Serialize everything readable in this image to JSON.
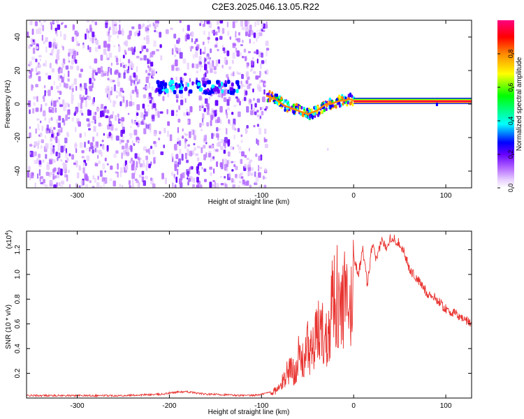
{
  "title": "C2E3.2025.046.13.05.R22",
  "colors": {
    "snr_line": "#e8332f",
    "colormap": [
      "#ffffff",
      "#e6ccff",
      "#b266ff",
      "#6600ff",
      "#0000ff",
      "#00ffff",
      "#00ff00",
      "#ffff00",
      "#ff8800",
      "#ff0000",
      "#ff0080"
    ]
  },
  "chart_data": [
    {
      "type": "heatmap",
      "title": "C2E3.2025.046.13.05.R22",
      "xlabel": "Height of straight line (km)",
      "ylabel": "Frequency (Hz)",
      "xlim": [
        -355,
        128
      ],
      "ylim": [
        -50,
        50
      ],
      "x_ticks": [
        -300,
        -200,
        -100,
        0,
        100
      ],
      "x_tick_labels": [
        "-300",
        "-200",
        "-100",
        "0",
        "100"
      ],
      "y_ticks": [
        -40,
        -20,
        0,
        20,
        40
      ],
      "y_tick_labels": [
        "-40",
        "-20",
        "0",
        "20",
        "40"
      ],
      "noise_region_x": [
        -355,
        -95
      ],
      "noise_gap_x": [
        -215,
        -200
      ],
      "weak_band": {
        "x": [
          -215,
          -125
        ],
        "freq": 10
      },
      "signal_trace": {
        "x": [
          -95,
          -90,
          -85,
          -80,
          -75,
          -70,
          -65,
          -60,
          -55,
          -50,
          -45,
          -40,
          -35,
          -30,
          -25,
          -20,
          -15,
          -10,
          -5,
          0,
          20,
          40,
          60,
          80,
          100,
          128
        ],
        "freq": [
          5,
          4,
          3,
          1,
          -1,
          -2,
          -3,
          -4,
          -5,
          -6,
          -5,
          -4,
          -2,
          0,
          0,
          1,
          2,
          2,
          3,
          2,
          2,
          2,
          2,
          2,
          2,
          2
        ]
      },
      "colorbar": {
        "label": "Normalized spectral amplitude",
        "range": [
          0,
          1
        ],
        "ticks": [
          0.0,
          0.2,
          0.4,
          0.6,
          0.8
        ],
        "tick_labels": [
          "0.0",
          "0.2",
          "0.4",
          "0.6",
          "0.8"
        ]
      }
    },
    {
      "type": "line",
      "xlabel": "Height of straight line (km)",
      "ylabel": "SNR (10 * v/v)",
      "y_multiplier": "(x10",
      "y_multiplier_exp": "4",
      "y_multiplier_close": ")",
      "xlim": [
        -355,
        128
      ],
      "ylim": [
        0,
        1.35
      ],
      "x_ticks": [
        -300,
        -200,
        -100,
        0,
        100
      ],
      "x_tick_labels": [
        "-300",
        "-200",
        "-100",
        "0",
        "100"
      ],
      "y_ticks": [
        0.2,
        0.4,
        0.6,
        0.8,
        1.0,
        1.2
      ],
      "y_tick_labels": [
        "0.2",
        "0.4",
        "0.6",
        "0.8",
        "1.0",
        "1.2"
      ],
      "series": [
        {
          "x": [
            -355,
            -300,
            -250,
            -210,
            -200,
            -190,
            -180,
            -170,
            -160,
            -150,
            -120,
            -110,
            -100,
            -90,
            -80,
            -75,
            -70,
            -65,
            -60,
            -55,
            -50,
            -45,
            -40,
            -35,
            -30,
            -25,
            -20,
            -15,
            -10,
            -5,
            0,
            5,
            10,
            15,
            20,
            25,
            30,
            35,
            40,
            45,
            50,
            55,
            60,
            70,
            80,
            90,
            100,
            110,
            120,
            128
          ],
          "values": [
            0.02,
            0.02,
            0.02,
            0.03,
            0.04,
            0.05,
            0.05,
            0.04,
            0.03,
            0.03,
            0.02,
            0.02,
            0.03,
            0.05,
            0.1,
            0.2,
            0.3,
            0.25,
            0.4,
            0.35,
            0.5,
            0.45,
            0.6,
            0.7,
            0.55,
            0.9,
            1.1,
            0.8,
            1.0,
            0.75,
            1.15,
            1.0,
            1.2,
            0.9,
            1.25,
            1.1,
            1.28,
            1.22,
            1.3,
            1.28,
            1.25,
            1.18,
            1.05,
            0.95,
            0.85,
            0.8,
            0.72,
            0.68,
            0.64,
            0.6
          ]
        }
      ]
    }
  ]
}
